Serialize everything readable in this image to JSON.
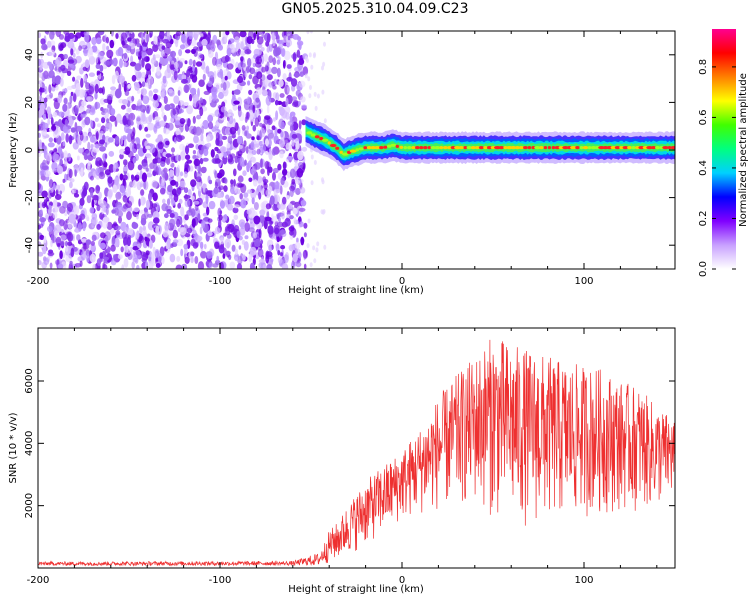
{
  "title": "GN05.2025.310.04.09.C23",
  "chart_data": [
    {
      "type": "heatmap",
      "name": "spectrogram",
      "xlabel": "Height of straight line (km)",
      "ylabel": "Frequency (Hz)",
      "xlim": [
        -200,
        150
      ],
      "ylim": [
        -50,
        50
      ],
      "xticks": [
        -200,
        -100,
        0,
        100
      ],
      "xtick_labels": [
        "-200",
        "-100",
        "0",
        "100"
      ],
      "yticks": [
        -40,
        -20,
        0,
        20,
        40
      ],
      "ytick_labels": [
        "-40",
        "-20",
        "0",
        "20",
        "40"
      ],
      "noise_region_x": [
        -200,
        -53
      ],
      "ridge": {
        "x": [
          -53,
          -48,
          -42,
          -36,
          -32,
          -29,
          -25,
          -20,
          -15,
          -10,
          -5,
          0,
          10,
          20,
          40,
          60,
          80,
          100,
          120,
          150
        ],
        "y": [
          8,
          6,
          4,
          1,
          -2,
          -1,
          0,
          1,
          1,
          1,
          2,
          1,
          1,
          1,
          1,
          1,
          1,
          1,
          1,
          1
        ]
      },
      "colorbar": {
        "label": "Normalized spectral amplitude",
        "range": [
          0,
          0.95
        ],
        "ticks": [
          0,
          0.2,
          0.4,
          0.6,
          0.8
        ],
        "tick_labels": [
          "0.0",
          "0.2",
          "0.4",
          "0.6",
          "0.8"
        ],
        "colors": [
          "#ffffff",
          "#c8a0ff",
          "#8000ff",
          "#0000ff",
          "#00d0ff",
          "#00ff80",
          "#40ff00",
          "#ffff00",
          "#ff8000",
          "#ff0000",
          "#ff0090"
        ]
      }
    },
    {
      "type": "line",
      "name": "snr",
      "xlabel": "Height of straight line (km)",
      "ylabel": "SNR (10 * v/v)",
      "xlim": [
        -200,
        150
      ],
      "ylim": [
        0,
        7700
      ],
      "xticks": [
        -200,
        -100,
        0,
        100
      ],
      "xtick_labels": [
        "-200",
        "-100",
        "0",
        "100"
      ],
      "yticks": [
        2000,
        4000,
        6000
      ],
      "ytick_labels": [
        "2000",
        "4000",
        "6000"
      ],
      "color": "#ee3030",
      "envelope": {
        "x": [
          -200,
          -60,
          -45,
          -40,
          -35,
          -30,
          -20,
          -10,
          0,
          10,
          20,
          30,
          40,
          50,
          60,
          70,
          80,
          90,
          100,
          110,
          120,
          130,
          140,
          150
        ],
        "min": [
          80,
          80,
          80,
          150,
          250,
          400,
          700,
          1100,
          1500,
          1700,
          1800,
          1900,
          2000,
          1600,
          1400,
          1300,
          1400,
          1500,
          1600,
          1700,
          1800,
          1800,
          1900,
          2200
        ],
        "max": [
          200,
          220,
          500,
          1200,
          1500,
          2000,
          2800,
          3300,
          3800,
          4500,
          5500,
          6200,
          6800,
          7500,
          7200,
          7000,
          6800,
          6600,
          6500,
          6400,
          6000,
          5800,
          5200,
          4800
        ]
      }
    }
  ]
}
